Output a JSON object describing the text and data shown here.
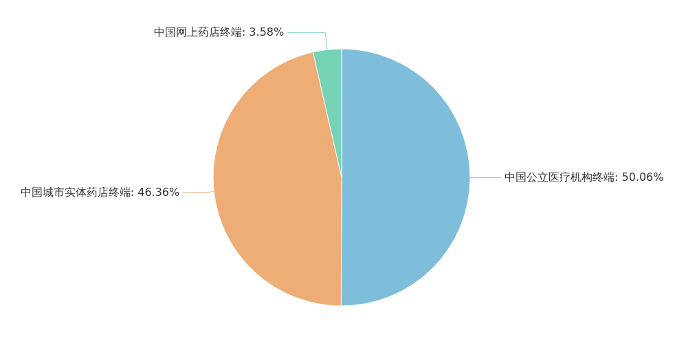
{
  "chart_data": {
    "type": "pie",
    "categories": [
      "中国公立医疗机构终端",
      "中国城市实体药店终端",
      "中国网上药店终端"
    ],
    "values": [
      50.06,
      46.36,
      3.58
    ],
    "value_labels": [
      ": 50.06%",
      ": 46.36%",
      ": 3.58%"
    ],
    "colors": [
      "#7fbedb",
      "#edad74",
      "#76d3b5"
    ]
  }
}
